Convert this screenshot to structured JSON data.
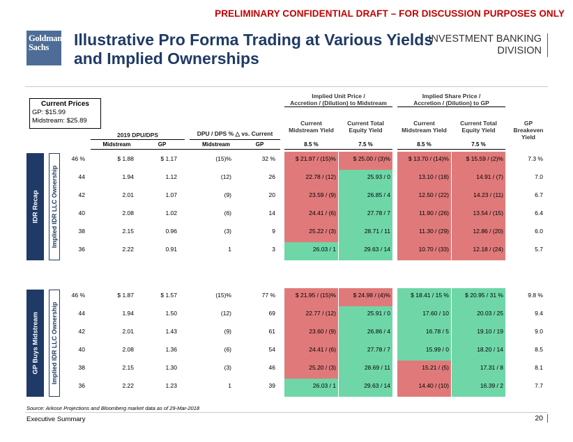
{
  "banner": "PRELIMINARY CONFIDENTIAL DRAFT – FOR DISCUSSION PURPOSES ONLY",
  "logo": [
    "Goldman",
    "Sachs"
  ],
  "title_line1": "Illustrative Pro Forma Trading at Various Yields",
  "title_line2": "and Implied Ownerships",
  "division_line1": "INVESTMENT BANKING",
  "division_line2": "DIVISION",
  "prices": {
    "title": "Current Prices",
    "gp": "GP: $15.99",
    "midstream": "Midstream: $25.89"
  },
  "headers": {
    "implied_unit": [
      "Implied Unit Price /",
      "Accretion / (Dilution) to Midstream"
    ],
    "implied_share": [
      "Implied Share Price /",
      "Accretion / (Dilution) to GP"
    ],
    "dpu_dps": "2019 DPU/DPS",
    "dpu_vs": "DPU / DPS % △ vs. Current",
    "unit_midstream_yield": [
      "Current",
      "Midstream Yield"
    ],
    "unit_total_yield": [
      "Current Total",
      "Equity Yield"
    ],
    "share_midstream_yield": [
      "Current",
      "Midstream Yield"
    ],
    "share_total_yield": [
      "Current Total",
      "Equity Yield"
    ],
    "gp_breakeven": [
      "GP",
      "Breakeven",
      "Yield"
    ],
    "sub_midstream": "Midstream",
    "sub_gp": "GP",
    "sub_midstream2": "Midstream",
    "sub_gp2": "GP",
    "yield_85_a": "8.5 %",
    "yield_75_a": "7.5 %",
    "yield_85_b": "8.5 %",
    "yield_75_b": "7.5 %"
  },
  "sections": [
    {
      "label": "IDR Recap",
      "sublabel": "Implied IDR LLC Ownership",
      "rows": [
        {
          "own": "46 %",
          "dpu_mid": "$ 1.88",
          "dpu_gp": "$ 1.17",
          "chg_mid": "(15)%",
          "chg_gp": "32 %",
          "u1": "$ 21.97 / (15)%",
          "u1c": "pink",
          "u2": "$ 25.00 / (3)%",
          "u2c": "pink",
          "s1": "$ 13.70 / (14)%",
          "s1c": "pink",
          "s2": "$ 15.59 / (2)%",
          "s2c": "pink",
          "be": "7.3 %"
        },
        {
          "own": "44",
          "dpu_mid": "1.94",
          "dpu_gp": "1.12",
          "chg_mid": "(12)",
          "chg_gp": "26",
          "u1": "22.78 / (12)",
          "u1c": "pink",
          "u2": "25.93 / 0",
          "u2c": "green",
          "s1": "13.10 / (18)",
          "s1c": "pink",
          "s2": "14.91 / (7)",
          "s2c": "pink",
          "be": "7.0"
        },
        {
          "own": "42",
          "dpu_mid": "2.01",
          "dpu_gp": "1.07",
          "chg_mid": "(9)",
          "chg_gp": "20",
          "u1": "23.59 / (9)",
          "u1c": "pink",
          "u2": "26.85 / 4",
          "u2c": "green",
          "s1": "12.50 / (22)",
          "s1c": "pink",
          "s2": "14.23 / (11)",
          "s2c": "pink",
          "be": "6.7"
        },
        {
          "own": "40",
          "dpu_mid": "2.08",
          "dpu_gp": "1.02",
          "chg_mid": "(6)",
          "chg_gp": "14",
          "u1": "24.41 / (6)",
          "u1c": "pink",
          "u2": "27.78 / 7",
          "u2c": "green",
          "s1": "11.90 / (26)",
          "s1c": "pink",
          "s2": "13.54 / (15)",
          "s2c": "pink",
          "be": "6.4"
        },
        {
          "own": "38",
          "dpu_mid": "2.15",
          "dpu_gp": "0.96",
          "chg_mid": "(3)",
          "chg_gp": "9",
          "u1": "25.22 / (3)",
          "u1c": "pink",
          "u2": "28.71 / 11",
          "u2c": "green",
          "s1": "11.30 / (29)",
          "s1c": "pink",
          "s2": "12.86 / (20)",
          "s2c": "pink",
          "be": "6.0"
        },
        {
          "own": "36",
          "dpu_mid": "2.22",
          "dpu_gp": "0.91",
          "chg_mid": "1",
          "chg_gp": "3",
          "u1": "26.03 / 1",
          "u1c": "green",
          "u2": "29.63 / 14",
          "u2c": "green",
          "s1": "10.70 / (33)",
          "s1c": "pink",
          "s2": "12.18 / (24)",
          "s2c": "pink",
          "be": "5.7"
        }
      ]
    },
    {
      "label": "GP Buys Midstream",
      "sublabel": "Implied IDR LLC Ownership",
      "rows": [
        {
          "own": "46 %",
          "dpu_mid": "$ 1.87",
          "dpu_gp": "$ 1.57",
          "chg_mid": "(15)%",
          "chg_gp": "77 %",
          "u1": "$ 21.95 / (15)%",
          "u1c": "pink",
          "u2": "$ 24.98 / (4)%",
          "u2c": "pink",
          "s1": "$ 18.41 / 15 %",
          "s1c": "green",
          "s2": "$ 20.95 / 31 %",
          "s2c": "green",
          "be": "9.8 %"
        },
        {
          "own": "44",
          "dpu_mid": "1.94",
          "dpu_gp": "1.50",
          "chg_mid": "(12)",
          "chg_gp": "69",
          "u1": "22.77 / (12)",
          "u1c": "pink",
          "u2": "25.91 / 0",
          "u2c": "green",
          "s1": "17.60 / 10",
          "s1c": "green",
          "s2": "20.03 / 25",
          "s2c": "green",
          "be": "9.4"
        },
        {
          "own": "42",
          "dpu_mid": "2.01",
          "dpu_gp": "1.43",
          "chg_mid": "(9)",
          "chg_gp": "61",
          "u1": "23.60 / (9)",
          "u1c": "pink",
          "u2": "26.86 / 4",
          "u2c": "green",
          "s1": "16.78 / 5",
          "s1c": "green",
          "s2": "19.10 / 19",
          "s2c": "green",
          "be": "9.0"
        },
        {
          "own": "40",
          "dpu_mid": "2.08",
          "dpu_gp": "1.36",
          "chg_mid": "(6)",
          "chg_gp": "54",
          "u1": "24.41 / (6)",
          "u1c": "pink",
          "u2": "27.78 / 7",
          "u2c": "green",
          "s1": "15.99 / 0",
          "s1c": "green",
          "s2": "18.20 / 14",
          "s2c": "green",
          "be": "8.5"
        },
        {
          "own": "38",
          "dpu_mid": "2.15",
          "dpu_gp": "1.30",
          "chg_mid": "(3)",
          "chg_gp": "46",
          "u1": "25.20 / (3)",
          "u1c": "pink",
          "u2": "28.69 / 11",
          "u2c": "green",
          "s1": "15.21 / (5)",
          "s1c": "pink",
          "s2": "17.31 / 8",
          "s2c": "green",
          "be": "8.1"
        },
        {
          "own": "36",
          "dpu_mid": "2.22",
          "dpu_gp": "1.23",
          "chg_mid": "1",
          "chg_gp": "39",
          "u1": "26.03 / 1",
          "u1c": "green",
          "u2": "29.63 / 14",
          "u2c": "green",
          "s1": "14.40 / (10)",
          "s1c": "pink",
          "s2": "16.39 / 2",
          "s2c": "green",
          "be": "7.7"
        }
      ]
    }
  ],
  "source": "Source: Arkose Projections and Bloomberg market data as of 29-Mar-2018",
  "footer": "Executive Summary",
  "page_number": "20"
}
